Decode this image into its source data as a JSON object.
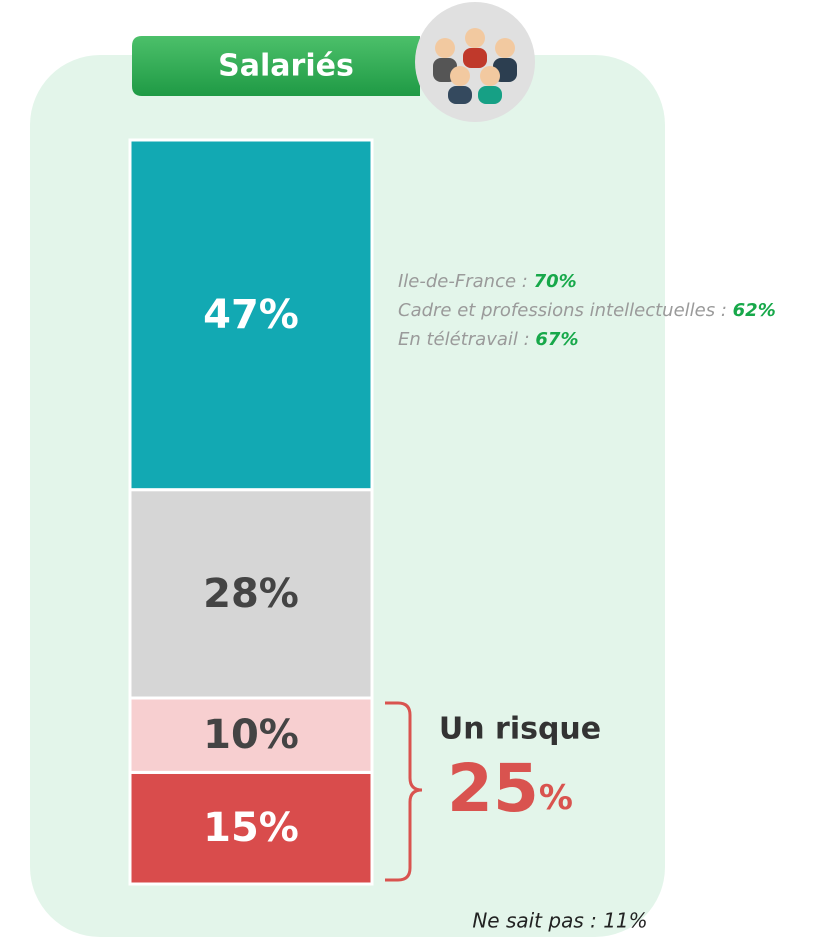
{
  "chart_data": {
    "type": "stacked-bar",
    "title": "Salariés",
    "values": [
      15,
      10,
      28,
      47
    ],
    "value_labels": [
      "15%",
      "10%",
      "28%",
      "47%"
    ],
    "colors": [
      "#d94c4c",
      "#f7cfd0",
      "#d6d6d6",
      "#12a9b3"
    ],
    "annotations": [
      {
        "label": "Ile-de-France :",
        "value": "70%"
      },
      {
        "label": "Cadre et professions intellectuelles :",
        "value": "62%"
      },
      {
        "label": "En télétravail :",
        "value": "67%"
      }
    ],
    "risk": {
      "label": "Un risque",
      "value": "25",
      "unit": "%"
    },
    "footnote": "Ne sait pas : 11%"
  }
}
